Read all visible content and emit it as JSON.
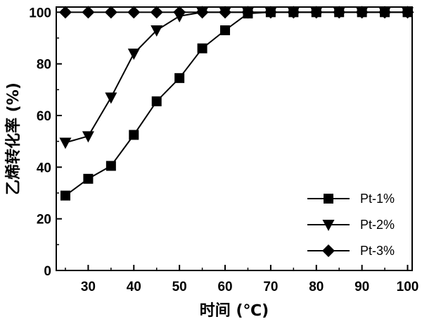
{
  "chart_data": {
    "type": "line",
    "title": "",
    "xlabel": "时间 (℃)",
    "ylabel": "乙烯转化率 (%)",
    "xlim": [
      23,
      101
    ],
    "ylim": [
      0,
      102
    ],
    "xticks": [
      30,
      40,
      50,
      60,
      70,
      80,
      90,
      100
    ],
    "yticks": [
      0,
      20,
      40,
      60,
      80,
      100
    ],
    "grid": false,
    "legend_position": "bottom-right",
    "x": [
      25,
      30,
      35,
      40,
      45,
      50,
      55,
      60,
      65,
      70,
      75,
      80,
      85,
      90,
      95,
      100
    ],
    "series": [
      {
        "name": "Pt-1%",
        "marker": "square",
        "color": "#000000",
        "values": [
          29,
          35.5,
          40.5,
          52.5,
          65.5,
          74.5,
          86,
          93,
          99.5,
          100,
          100,
          100,
          100,
          100,
          100,
          100
        ]
      },
      {
        "name": "Pt-2%",
        "marker": "triangle-down",
        "color": "#000000",
        "values": [
          49.5,
          52,
          67,
          84,
          93,
          98.5,
          100,
          100,
          100,
          100,
          100,
          100,
          100,
          100,
          100,
          100
        ]
      },
      {
        "name": "Pt-3%",
        "marker": "diamond",
        "color": "#000000",
        "values": [
          100,
          100,
          100,
          100,
          100,
          100,
          100,
          100,
          100,
          100,
          100,
          100,
          100,
          100,
          100,
          100
        ]
      }
    ]
  }
}
